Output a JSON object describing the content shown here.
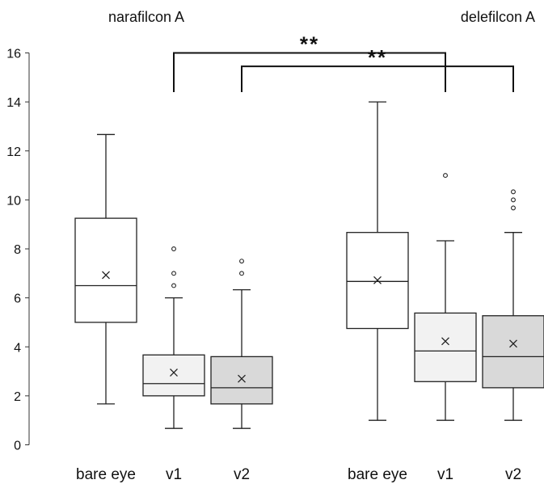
{
  "chart_data": {
    "type": "box",
    "ylim": [
      0,
      16
    ],
    "yticks": [
      0,
      2,
      4,
      6,
      8,
      10,
      12,
      14,
      16
    ],
    "groups": [
      {
        "label": "narafilcon A",
        "box_indices": [
          0,
          1,
          2
        ]
      },
      {
        "label": "delefilcon A",
        "box_indices": [
          3,
          4,
          5
        ]
      }
    ],
    "boxes": [
      {
        "category": "bare eye",
        "min": 1.67,
        "q1": 5.0,
        "median": 6.5,
        "q3": 9.25,
        "max": 12.67,
        "mean": 6.93,
        "outliers": [],
        "fill": "#ffffff"
      },
      {
        "category": "v1",
        "min": 0.67,
        "q1": 2.0,
        "median": 2.5,
        "q3": 3.67,
        "max": 6.0,
        "mean": 2.95,
        "outliers": [
          6.5,
          7.0,
          8.0
        ],
        "fill": "#f2f2f2"
      },
      {
        "category": "v2",
        "min": 0.67,
        "q1": 1.67,
        "median": 2.33,
        "q3": 3.6,
        "max": 6.33,
        "mean": 2.7,
        "outliers": [
          7.0,
          7.5
        ],
        "fill": "#d9d9d9"
      },
      {
        "category": "bare eye",
        "min": 1.0,
        "q1": 4.75,
        "median": 6.67,
        "q3": 8.67,
        "max": 14.0,
        "mean": 6.72,
        "outliers": [],
        "fill": "#ffffff"
      },
      {
        "category": "v1",
        "min": 1.0,
        "q1": 2.58,
        "median": 3.83,
        "q3": 5.38,
        "max": 8.33,
        "mean": 4.23,
        "outliers": [
          11.0
        ],
        "fill": "#f2f2f2"
      },
      {
        "category": "v2",
        "min": 1.0,
        "q1": 2.33,
        "median": 3.6,
        "q3": 5.27,
        "max": 8.67,
        "mean": 4.13,
        "outliers": [
          9.67,
          10.0,
          10.33
        ],
        "fill": "#d9d9d9"
      }
    ],
    "significance": [
      {
        "from": 1,
        "to": 4,
        "label": "**"
      },
      {
        "from": 2,
        "to": 5,
        "label": "**"
      }
    ]
  }
}
